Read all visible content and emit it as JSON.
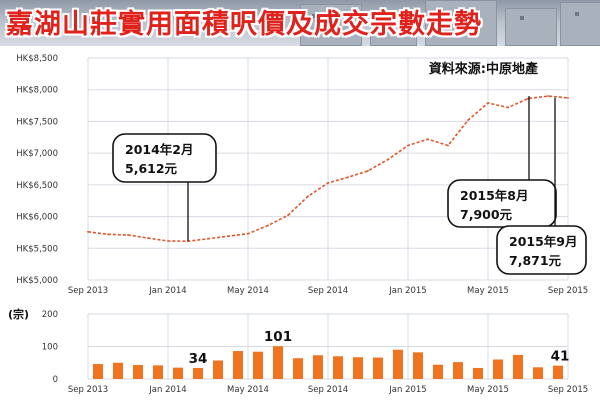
{
  "title": "嘉湖山莊實用面積呎價及成交宗數走勢",
  "source_note": "資料來源:中原地產",
  "chart_data": [
    {
      "type": "line",
      "x_ticks": [
        "Sep 2013",
        "Jan 2014",
        "May 2014",
        "Sep 2014",
        "Jan 2015",
        "May 2015",
        "Sep 2015"
      ],
      "y_ticks": [
        "HK$5,000",
        "HK$5,500",
        "HK$6,000",
        "HK$6,500",
        "HK$7,000",
        "HK$7,500",
        "HK$8,000",
        "HK$8,500"
      ],
      "ylim": [
        5000,
        8500
      ],
      "grid": true,
      "line_color": "#e2552a",
      "series": [
        {
          "x": [
            "2013-09",
            "2013-10",
            "2013-11",
            "2013-12",
            "2014-01",
            "2014-02",
            "2014-03",
            "2014-04",
            "2014-05",
            "2014-06",
            "2014-07",
            "2014-08",
            "2014-09",
            "2014-10",
            "2014-11",
            "2014-12",
            "2015-01",
            "2015-02",
            "2015-03",
            "2015-04",
            "2015-05",
            "2015-06",
            "2015-07",
            "2015-08",
            "2015-09"
          ],
          "values": [
            5760,
            5720,
            5710,
            5660,
            5615,
            5612,
            5650,
            5690,
            5730,
            5860,
            6020,
            6320,
            6530,
            6620,
            6720,
            6900,
            7120,
            7220,
            7120,
            7520,
            7790,
            7720,
            7860,
            7900,
            7871
          ]
        }
      ],
      "annotations": [
        {
          "line1": "2014年2月",
          "line2": "5,612元"
        },
        {
          "line1": "2015年8月",
          "line2": "7,900元"
        },
        {
          "line1": "2015年9月",
          "line2": "7,871元"
        }
      ]
    },
    {
      "type": "bar",
      "ylabel": "(宗)",
      "x_ticks": [
        "Sep 2013",
        "Jan 2014",
        "May 2014",
        "Sep 2014",
        "Jan 2015",
        "May 2015",
        "Sep 2015"
      ],
      "y_ticks": [
        "0",
        "100",
        "200"
      ],
      "ylim": [
        0,
        200
      ],
      "grid": true,
      "bar_color": "#f07420",
      "values": [
        46,
        50,
        43,
        42,
        35,
        34,
        57,
        86,
        84,
        101,
        64,
        73,
        70,
        67,
        66,
        90,
        82,
        44,
        52,
        34,
        60,
        74,
        36,
        41
      ],
      "data_labels": [
        {
          "index": 5,
          "text": "34"
        },
        {
          "index": 9,
          "text": "101"
        },
        {
          "index": 23,
          "text": "41"
        }
      ]
    }
  ],
  "colors": {
    "title": "#e0221c",
    "line": "#e2552a",
    "bar": "#f07420",
    "grid": "#d6dbe3",
    "axis_text": "#333333"
  }
}
